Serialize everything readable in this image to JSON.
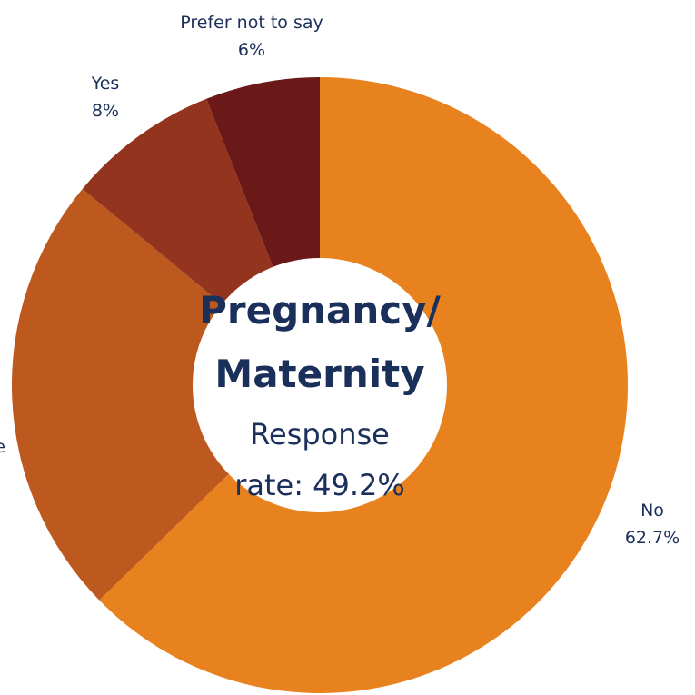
{
  "colors": {
    "text": "#1b2f5b",
    "hole": "#ffffff"
  },
  "center": {
    "title_line1": "Pregnancy/",
    "title_line2": "Maternity",
    "subtitle_line1": "Response",
    "subtitle_line2": "rate: 49.2%"
  },
  "chart_data": {
    "type": "pie",
    "title": "",
    "slices": [
      {
        "label": "No",
        "value": 62.7,
        "value_label": "62.7%",
        "color": "#e8821e"
      },
      {
        "label": "Not applicable",
        "value": 23.3,
        "value_label": "",
        "color": "#bd581f"
      },
      {
        "label": "Yes",
        "value": 8,
        "value_label": "8%",
        "color": "#93341f"
      },
      {
        "label": "Prefer not to say",
        "value": 6,
        "value_label": "6%",
        "color": "#6b1818"
      }
    ]
  }
}
